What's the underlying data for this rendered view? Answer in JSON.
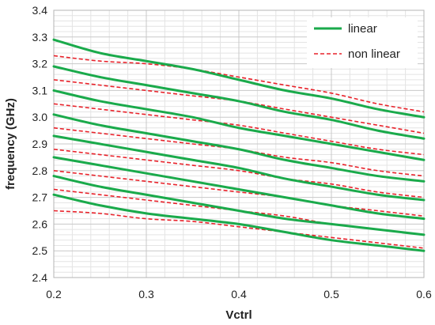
{
  "chart_data": {
    "type": "line",
    "title": "",
    "xlabel": "Vctrl",
    "ylabel": "frequency (GHz)",
    "xlim": [
      0.2,
      0.6
    ],
    "ylim": [
      2.4,
      3.4
    ],
    "x_ticks": [
      "0.2",
      "0.3",
      "0.4",
      "0.5",
      "0.6"
    ],
    "y_ticks": [
      "2.4",
      "2.5",
      "2.6",
      "2.7",
      "2.8",
      "2.9",
      "3.0",
      "3.1",
      "3.2",
      "3.3",
      "3.4"
    ],
    "grid": true,
    "minor_grid": true,
    "legend_position": "top-right",
    "colors": {
      "linear": "#1aaa4b",
      "non_linear": "#e8222a"
    },
    "x": [
      0.2,
      0.25,
      0.3,
      0.35,
      0.4,
      0.45,
      0.5,
      0.55,
      0.6
    ],
    "series": [
      {
        "name": "linear",
        "style": "solid",
        "curves": [
          [
            3.29,
            3.24,
            3.21,
            3.18,
            3.14,
            3.1,
            3.07,
            3.03,
            3.0
          ],
          [
            3.19,
            3.15,
            3.12,
            3.09,
            3.06,
            3.02,
            2.99,
            2.95,
            2.92
          ],
          [
            3.1,
            3.06,
            3.03,
            3.0,
            2.96,
            2.93,
            2.9,
            2.87,
            2.84
          ],
          [
            3.01,
            2.97,
            2.94,
            2.91,
            2.88,
            2.84,
            2.81,
            2.78,
            2.76
          ],
          [
            2.93,
            2.9,
            2.87,
            2.84,
            2.81,
            2.77,
            2.74,
            2.71,
            2.69
          ],
          [
            2.85,
            2.82,
            2.79,
            2.76,
            2.73,
            2.7,
            2.67,
            2.64,
            2.62
          ],
          [
            2.78,
            2.74,
            2.71,
            2.68,
            2.65,
            2.62,
            2.6,
            2.58,
            2.56
          ],
          [
            2.71,
            2.67,
            2.64,
            2.62,
            2.6,
            2.57,
            2.54,
            2.52,
            2.5
          ]
        ]
      },
      {
        "name": "non linear",
        "style": "dashed",
        "curves": [
          [
            3.23,
            3.21,
            3.2,
            3.18,
            3.15,
            3.12,
            3.09,
            3.05,
            3.02
          ],
          [
            3.14,
            3.12,
            3.1,
            3.08,
            3.06,
            3.03,
            3.0,
            2.97,
            2.94
          ],
          [
            3.05,
            3.03,
            3.01,
            2.99,
            2.97,
            2.94,
            2.91,
            2.88,
            2.86
          ],
          [
            2.96,
            2.94,
            2.92,
            2.9,
            2.88,
            2.85,
            2.83,
            2.8,
            2.78
          ],
          [
            2.88,
            2.86,
            2.84,
            2.82,
            2.8,
            2.77,
            2.75,
            2.72,
            2.7
          ],
          [
            2.8,
            2.78,
            2.76,
            2.74,
            2.72,
            2.7,
            2.67,
            2.65,
            2.63
          ],
          [
            2.73,
            2.71,
            2.69,
            2.67,
            2.65,
            2.63,
            2.6,
            2.58,
            2.56
          ],
          [
            2.65,
            2.64,
            2.62,
            2.61,
            2.59,
            2.57,
            2.55,
            2.53,
            2.51
          ]
        ]
      }
    ]
  }
}
